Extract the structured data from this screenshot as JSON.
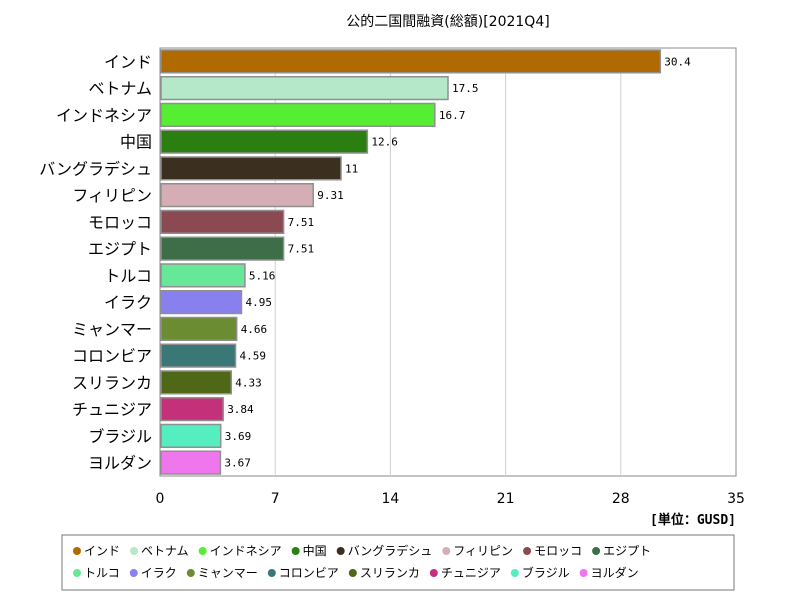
{
  "chart_data": {
    "type": "bar",
    "orientation": "horizontal",
    "title": "公的二国間融資(総額)[2021Q4]",
    "unit_label": "[単位：GUSD]",
    "xlim": [
      0,
      35
    ],
    "x_ticks": [
      "0",
      "7",
      "14",
      "21",
      "28",
      "35"
    ],
    "grid": true,
    "legend_position": "bottom",
    "categories": [
      "インド",
      "ベトナム",
      "インドネシア",
      "中国",
      "バングラデシュ",
      "フィリピン",
      "モロッコ",
      "エジプト",
      "トルコ",
      "イラク",
      "ミャンマー",
      "コロンビア",
      "スリランカ",
      "チュニジア",
      "ブラジル",
      "ヨルダン"
    ],
    "values": [
      30.4,
      17.5,
      16.7,
      12.6,
      11,
      9.31,
      7.51,
      7.51,
      5.16,
      4.95,
      4.66,
      4.59,
      4.33,
      3.84,
      3.69,
      3.67
    ],
    "value_labels": [
      "30.4",
      "17.5",
      "16.7",
      "12.6",
      "11",
      "9.31",
      "7.51",
      "7.51",
      "5.16",
      "4.95",
      "4.66",
      "4.59",
      "4.33",
      "3.84",
      "3.69",
      "3.67"
    ],
    "colors": [
      "#b06a00",
      "#b4e8c8",
      "#55ee33",
      "#2a7f10",
      "#3b2f1f",
      "#d4aeb4",
      "#8b4a52",
      "#3d6e48",
      "#66e898",
      "#8880ee",
      "#6b8c30",
      "#3a7878",
      "#4e6818",
      "#c4307a",
      "#55eec0",
      "#ee77ee"
    ]
  }
}
